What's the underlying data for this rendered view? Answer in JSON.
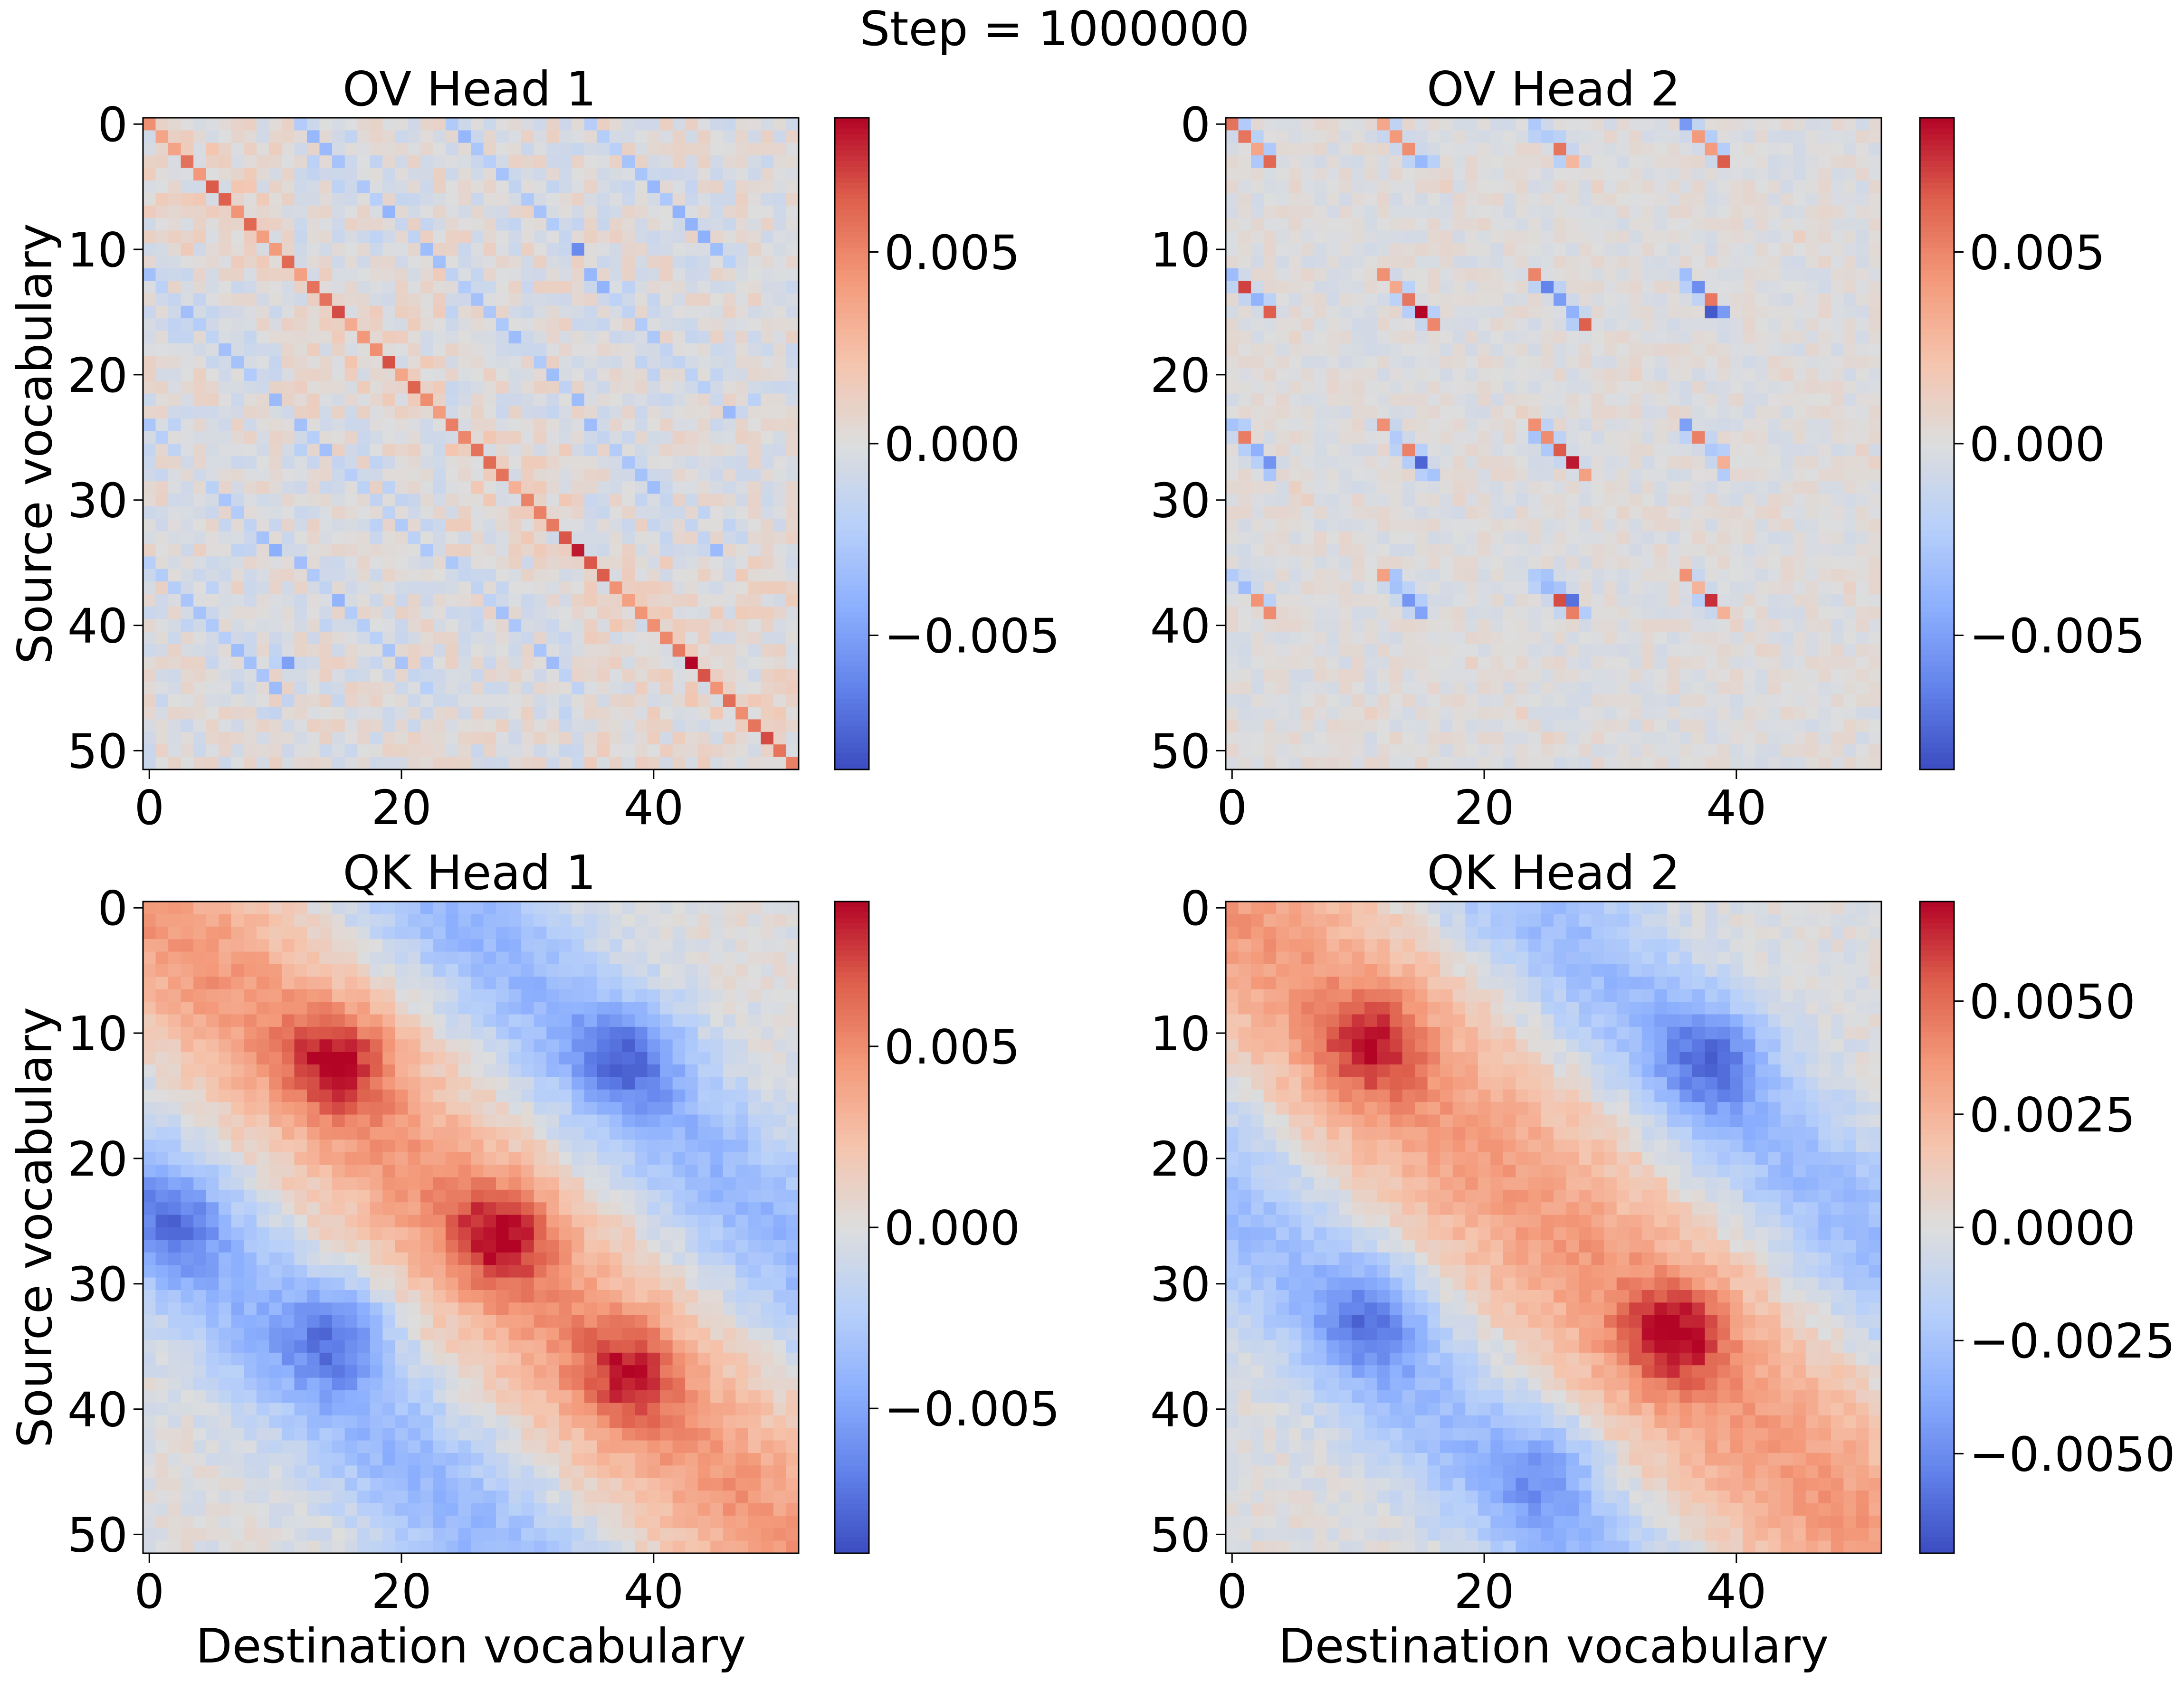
{
  "figure": {
    "suptitle": "Step = 1000000"
  },
  "chart_data": [
    {
      "type": "heatmap",
      "title": "OV Head 1",
      "xlabel": "",
      "ylabel": "Source vocabulary",
      "grid_size": 52,
      "xlim": [
        -0.5,
        51.5
      ],
      "ylim": [
        51.5,
        -0.5
      ],
      "x_ticks": [
        0,
        20,
        40
      ],
      "x_tick_labels": [
        "0",
        "20",
        "40"
      ],
      "y_ticks": [
        0,
        10,
        20,
        30,
        40,
        50
      ],
      "y_tick_labels": [
        "0",
        "10",
        "20",
        "30",
        "40",
        "50"
      ],
      "colormap": "coolwarm",
      "colorbar": {
        "vmin": -0.0085,
        "vmax": 0.0085,
        "ticks": [
          0.005,
          0.0,
          -0.005
        ],
        "tick_labels": [
          "0.005",
          "0.000",
          "−0.005"
        ]
      },
      "pattern": "diagonal-bands",
      "groups": [
        [
          0,
          12
        ],
        [
          12,
          24
        ],
        [
          24,
          35
        ],
        [
          35,
          52
        ]
      ],
      "main_diag_strength": 0.0045,
      "offdiag_diag_strength": -0.0025,
      "noise": 0.0012,
      "peak_cells": [
        [
          34,
          34,
          0.008
        ],
        [
          43,
          43,
          0.0085
        ],
        [
          11,
          11,
          0.006
        ],
        [
          43,
          11,
          -0.005
        ],
        [
          10,
          34,
          -0.006
        ]
      ]
    },
    {
      "type": "heatmap",
      "title": "OV Head 2",
      "xlabel": "",
      "ylabel": "",
      "grid_size": 52,
      "xlim": [
        -0.5,
        51.5
      ],
      "ylim": [
        51.5,
        -0.5
      ],
      "x_ticks": [
        0,
        20,
        40
      ],
      "x_tick_labels": [
        "0",
        "20",
        "40"
      ],
      "y_ticks": [
        0,
        10,
        20,
        30,
        40,
        50
      ],
      "y_tick_labels": [
        "0",
        "10",
        "20",
        "30",
        "40",
        "50"
      ],
      "colormap": "coolwarm",
      "colorbar": {
        "vmin": -0.0085,
        "vmax": 0.0085,
        "ticks": [
          0.005,
          0.0,
          -0.005
        ],
        "tick_labels": [
          "0.005",
          "0.000",
          "−0.005"
        ]
      },
      "pattern": "block-spots",
      "block_rows": [
        [
          0,
          3
        ],
        [
          12,
          16
        ],
        [
          24,
          28
        ],
        [
          36,
          39
        ]
      ],
      "block_cols": [
        [
          0,
          3
        ],
        [
          12,
          16
        ],
        [
          24,
          28
        ],
        [
          36,
          39
        ]
      ],
      "spot_strength": 0.0065,
      "noise": 0.0007,
      "peak_cells": [
        [
          15,
          15,
          0.0085
        ],
        [
          15,
          38,
          -0.008
        ],
        [
          27,
          27,
          0.008
        ],
        [
          38,
          38,
          0.0075
        ],
        [
          38,
          27,
          -0.007
        ],
        [
          27,
          15,
          -0.0075
        ]
      ]
    },
    {
      "type": "heatmap",
      "title": "QK Head 1",
      "xlabel": "Destination vocabulary",
      "ylabel": "Source vocabulary",
      "grid_size": 52,
      "xlim": [
        -0.5,
        51.5
      ],
      "ylim": [
        51.5,
        -0.5
      ],
      "x_ticks": [
        0,
        20,
        40
      ],
      "x_tick_labels": [
        "0",
        "20",
        "40"
      ],
      "y_ticks": [
        0,
        10,
        20,
        30,
        40,
        50
      ],
      "y_tick_labels": [
        "0",
        "10",
        "20",
        "30",
        "40",
        "50"
      ],
      "colormap": "coolwarm",
      "colorbar": {
        "vmin": -0.009,
        "vmax": 0.009,
        "ticks": [
          0.005,
          0.0,
          -0.005
        ],
        "tick_labels": [
          "0.005",
          "0.000",
          "−0.005"
        ]
      },
      "pattern": "smooth-diagonal",
      "band_width": 7,
      "band_strength": 0.0045,
      "period": 24,
      "anti_strength": -0.004,
      "noise": 0.0008,
      "hotspots": [
        [
          12,
          15,
          0.0085
        ],
        [
          26,
          28,
          0.0085
        ],
        [
          37,
          38,
          0.007
        ],
        [
          34,
          15,
          -0.0075
        ],
        [
          12,
          38,
          -0.007
        ],
        [
          25,
          2,
          -0.006
        ]
      ]
    },
    {
      "type": "heatmap",
      "title": "QK Head 2",
      "xlabel": "Destination vocabulary",
      "ylabel": "",
      "grid_size": 52,
      "xlim": [
        -0.5,
        51.5
      ],
      "ylim": [
        51.5,
        -0.5
      ],
      "x_ticks": [
        0,
        20,
        40
      ],
      "x_tick_labels": [
        "0",
        "20",
        "40"
      ],
      "y_ticks": [
        0,
        10,
        20,
        30,
        40,
        50
      ],
      "y_tick_labels": [
        "0",
        "10",
        "20",
        "30",
        "40",
        "50"
      ],
      "colormap": "coolwarm",
      "colorbar": {
        "vmin": -0.0072,
        "vmax": 0.0072,
        "ticks": [
          0.005,
          0.0025,
          0.0,
          -0.0025,
          -0.005
        ],
        "tick_labels": [
          "0.0050",
          "0.0025",
          "0.0000",
          "−0.0025",
          "−0.0050"
        ]
      },
      "pattern": "smooth-diagonal",
      "band_width": 8,
      "band_strength": 0.0035,
      "period": 24,
      "anti_strength": -0.003,
      "noise": 0.0006,
      "hotspots": [
        [
          11,
          11,
          0.006
        ],
        [
          34,
          35,
          0.0072
        ],
        [
          12,
          38,
          -0.006
        ],
        [
          33,
          11,
          -0.0055
        ],
        [
          45,
          25,
          -0.004
        ]
      ]
    }
  ]
}
